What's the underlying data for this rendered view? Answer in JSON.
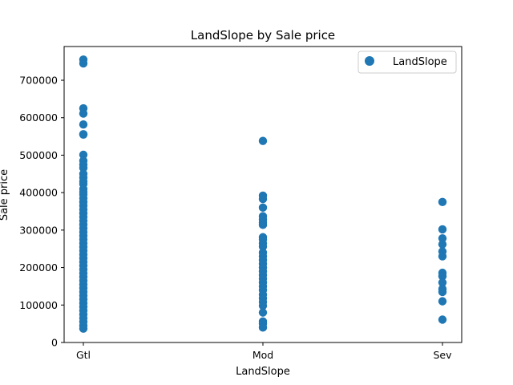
{
  "chart_data": {
    "type": "scatter",
    "title": "LandSlope by Sale price",
    "xlabel": "LandSlope",
    "ylabel": "Sale price",
    "categories": [
      "Gtl",
      "Mod",
      "Sev"
    ],
    "ylim": [
      0,
      790000
    ],
    "yticks": [
      0,
      100000,
      200000,
      300000,
      400000,
      500000,
      600000,
      700000
    ],
    "ytick_labels": [
      "0",
      "100000",
      "200000",
      "300000",
      "400000",
      "500000",
      "600000",
      "700000"
    ],
    "grid": false,
    "legend_position": "top-right",
    "color": "#1f77b4",
    "series": [
      {
        "name": "LandSlope",
        "points": [
          {
            "x": "Gtl",
            "y": 755000
          },
          {
            "x": "Gtl",
            "y": 745000
          },
          {
            "x": "Gtl",
            "y": 625000
          },
          {
            "x": "Gtl",
            "y": 611000
          },
          {
            "x": "Gtl",
            "y": 582000
          },
          {
            "x": "Gtl",
            "y": 556000
          },
          {
            "x": "Gtl",
            "y": 555000
          },
          {
            "x": "Gtl",
            "y": 501000
          },
          {
            "x": "Gtl",
            "y": 485000
          },
          {
            "x": "Gtl",
            "y": 475000
          },
          {
            "x": "Gtl",
            "y": 466000
          },
          {
            "x": "Gtl",
            "y": 450000
          },
          {
            "x": "Gtl",
            "y": 440000
          },
          {
            "x": "Gtl",
            "y": 430000
          },
          {
            "x": "Gtl",
            "y": 423000
          },
          {
            "x": "Gtl",
            "y": 410000
          },
          {
            "x": "Gtl",
            "y": 402000
          },
          {
            "x": "Gtl",
            "y": 395000
          },
          {
            "x": "Gtl",
            "y": 385000
          },
          {
            "x": "Gtl",
            "y": 375000
          },
          {
            "x": "Gtl",
            "y": 365000
          },
          {
            "x": "Gtl",
            "y": 355000
          },
          {
            "x": "Gtl",
            "y": 345000
          },
          {
            "x": "Gtl",
            "y": 335000
          },
          {
            "x": "Gtl",
            "y": 325000
          },
          {
            "x": "Gtl",
            "y": 315000
          },
          {
            "x": "Gtl",
            "y": 305000
          },
          {
            "x": "Gtl",
            "y": 295000
          },
          {
            "x": "Gtl",
            "y": 285000
          },
          {
            "x": "Gtl",
            "y": 275000
          },
          {
            "x": "Gtl",
            "y": 265000
          },
          {
            "x": "Gtl",
            "y": 255000
          },
          {
            "x": "Gtl",
            "y": 245000
          },
          {
            "x": "Gtl",
            "y": 235000
          },
          {
            "x": "Gtl",
            "y": 225000
          },
          {
            "x": "Gtl",
            "y": 215000
          },
          {
            "x": "Gtl",
            "y": 205000
          },
          {
            "x": "Gtl",
            "y": 195000
          },
          {
            "x": "Gtl",
            "y": 185000
          },
          {
            "x": "Gtl",
            "y": 175000
          },
          {
            "x": "Gtl",
            "y": 165000
          },
          {
            "x": "Gtl",
            "y": 155000
          },
          {
            "x": "Gtl",
            "y": 145000
          },
          {
            "x": "Gtl",
            "y": 135000
          },
          {
            "x": "Gtl",
            "y": 125000
          },
          {
            "x": "Gtl",
            "y": 115000
          },
          {
            "x": "Gtl",
            "y": 105000
          },
          {
            "x": "Gtl",
            "y": 95000
          },
          {
            "x": "Gtl",
            "y": 85000
          },
          {
            "x": "Gtl",
            "y": 75000
          },
          {
            "x": "Gtl",
            "y": 65000
          },
          {
            "x": "Gtl",
            "y": 55000
          },
          {
            "x": "Gtl",
            "y": 45000
          },
          {
            "x": "Gtl",
            "y": 37000
          },
          {
            "x": "Mod",
            "y": 538000
          },
          {
            "x": "Mod",
            "y": 392000
          },
          {
            "x": "Mod",
            "y": 383000
          },
          {
            "x": "Mod",
            "y": 360000
          },
          {
            "x": "Mod",
            "y": 337000
          },
          {
            "x": "Mod",
            "y": 328000
          },
          {
            "x": "Mod",
            "y": 320000
          },
          {
            "x": "Mod",
            "y": 314000
          },
          {
            "x": "Mod",
            "y": 281000
          },
          {
            "x": "Mod",
            "y": 275000
          },
          {
            "x": "Mod",
            "y": 265000
          },
          {
            "x": "Mod",
            "y": 256000
          },
          {
            "x": "Mod",
            "y": 240000
          },
          {
            "x": "Mod",
            "y": 230000
          },
          {
            "x": "Mod",
            "y": 220000
          },
          {
            "x": "Mod",
            "y": 210000
          },
          {
            "x": "Mod",
            "y": 200000
          },
          {
            "x": "Mod",
            "y": 190000
          },
          {
            "x": "Mod",
            "y": 180000
          },
          {
            "x": "Mod",
            "y": 170000
          },
          {
            "x": "Mod",
            "y": 160000
          },
          {
            "x": "Mod",
            "y": 150000
          },
          {
            "x": "Mod",
            "y": 140000
          },
          {
            "x": "Mod",
            "y": 128000
          },
          {
            "x": "Mod",
            "y": 118000
          },
          {
            "x": "Mod",
            "y": 108000
          },
          {
            "x": "Mod",
            "y": 98000
          },
          {
            "x": "Mod",
            "y": 80000
          },
          {
            "x": "Mod",
            "y": 56000
          },
          {
            "x": "Mod",
            "y": 50000
          },
          {
            "x": "Mod",
            "y": 40000
          },
          {
            "x": "Sev",
            "y": 375000
          },
          {
            "x": "Sev",
            "y": 302000
          },
          {
            "x": "Sev",
            "y": 278000
          },
          {
            "x": "Sev",
            "y": 262000
          },
          {
            "x": "Sev",
            "y": 243000
          },
          {
            "x": "Sev",
            "y": 230000
          },
          {
            "x": "Sev",
            "y": 186000
          },
          {
            "x": "Sev",
            "y": 177000
          },
          {
            "x": "Sev",
            "y": 160000
          },
          {
            "x": "Sev",
            "y": 143000
          },
          {
            "x": "Sev",
            "y": 135000
          },
          {
            "x": "Sev",
            "y": 110000
          },
          {
            "x": "Sev",
            "y": 61000
          }
        ]
      }
    ]
  }
}
